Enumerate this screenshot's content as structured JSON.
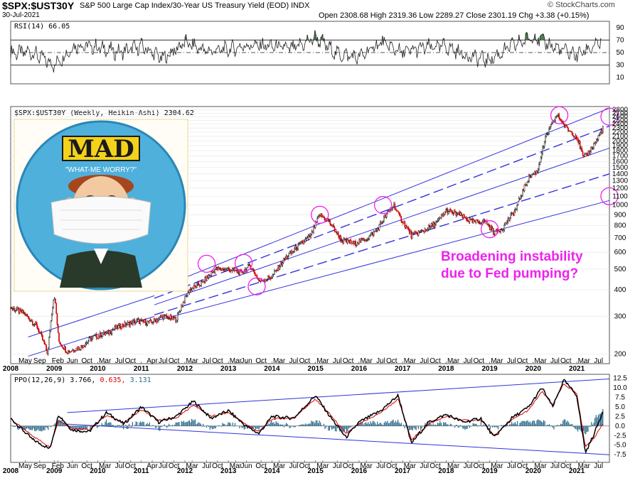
{
  "header": {
    "symbol": "$SPX:$UST30Y",
    "description": "S&P 500 Large Cap Index/30-Year US Treasury Yield (EOD)  INDX",
    "date": "30-Jul-2021",
    "ohlc": "Open 2308.68  High 2319.36  Low 2289.27  Close 2301.19  Chg +3.38 (+0.15%)",
    "brand": "© StockCharts.com"
  },
  "colors": {
    "price_up": "#000000",
    "price_down": "#cc0000",
    "trendline": "#3333dd",
    "circle": "#ee22ee",
    "annotation": "#ee22ee",
    "rsi_fill": "#4a7a4a",
    "ppo_line": "#000000",
    "signal_line": "#dd0000",
    "histogram": "#2a6a8a"
  },
  "chart_data": [
    {
      "type": "line",
      "title": "RSI(14) 66.05",
      "indicator": "RSI(14)",
      "current": "66.05",
      "y_ticks": [
        "90",
        "70",
        "50",
        "30",
        "10"
      ],
      "ylim": [
        0,
        100
      ],
      "overbought": 70,
      "oversold": 30,
      "grid": false,
      "x": [
        2008.5,
        2009.0,
        2009.5,
        2010.0,
        2010.5,
        2011.0,
        2011.5,
        2012.0,
        2012.5,
        2013.0,
        2013.5,
        2014.0,
        2014.5,
        2015.0,
        2015.5,
        2016.0,
        2016.5,
        2017.0,
        2017.5,
        2018.0,
        2018.5,
        2019.0,
        2019.5,
        2020.0,
        2020.5,
        2021.0,
        2021.55
      ],
      "values": [
        50,
        30,
        62,
        58,
        50,
        60,
        40,
        66,
        52,
        55,
        62,
        60,
        56,
        74,
        48,
        42,
        66,
        50,
        58,
        60,
        44,
        38,
        60,
        76,
        58,
        46,
        66
      ]
    },
    {
      "type": "line",
      "title": "$SPX:$UST30Y (Weekly, Heikin-Ashi) 2304.62",
      "style": "Heikin-Ashi",
      "current": "2304.62",
      "scale": "log",
      "y_ticks": [
        "2800",
        "2700",
        "2600",
        "2500",
        "2400",
        "2300",
        "2200",
        "2100",
        "2000",
        "1900",
        "1800",
        "1700",
        "1600",
        "1500",
        "1400",
        "1300",
        "1200",
        "1100",
        "1000",
        "900",
        "800",
        "700",
        "600",
        "500",
        "400",
        "300",
        "200"
      ],
      "ylim": [
        180,
        2900
      ],
      "x_tick_labels": [
        "2008",
        "May",
        "Sep",
        "2009",
        "Feb",
        "Jun",
        "Oct",
        "2010",
        "Mar",
        "Jul",
        "Oct",
        "2011",
        "Apr",
        "Jul",
        "Oct",
        "2012",
        "Mar",
        "Jul",
        "Oct",
        "2013",
        "Mar",
        "Jun",
        "Oct",
        "2014",
        "Mar",
        "Jul",
        "Oct",
        "2015",
        "Mar",
        "Jul",
        "Oct",
        "2016",
        "Mar",
        "Jul",
        "Oct",
        "2017",
        "Mar",
        "Jul",
        "Oct",
        "2018",
        "Mar",
        "Jul",
        "Oct",
        "2019",
        "Mar",
        "Jul",
        "Oct",
        "2020",
        "Mar",
        "Jul",
        "Oct",
        "2021",
        "Mar",
        "Jul"
      ],
      "xlim": [
        2008.0,
        2021.75
      ],
      "x": [
        2008.0,
        2008.3,
        2008.6,
        2008.85,
        2009.0,
        2009.1,
        2009.3,
        2009.6,
        2009.9,
        2010.2,
        2010.5,
        2010.9,
        2011.2,
        2011.5,
        2011.8,
        2012.1,
        2012.4,
        2012.7,
        2013.0,
        2013.3,
        2013.5,
        2013.7,
        2014.0,
        2014.3,
        2014.6,
        2014.9,
        2015.1,
        2015.3,
        2015.6,
        2015.9,
        2016.2,
        2016.4,
        2016.6,
        2016.8,
        2016.9,
        2017.2,
        2017.5,
        2017.8,
        2018.0,
        2018.3,
        2018.6,
        2018.9,
        2019.1,
        2019.3,
        2019.6,
        2019.9,
        2020.1,
        2020.3,
        2020.55,
        2020.75,
        2021.0,
        2021.15,
        2021.3,
        2021.45,
        2021.6
      ],
      "values": [
        330,
        310,
        270,
        200,
        380,
        230,
        205,
        215,
        240,
        250,
        270,
        285,
        280,
        300,
        290,
        400,
        430,
        500,
        500,
        480,
        520,
        440,
        460,
        560,
        640,
        720,
        900,
        840,
        680,
        660,
        700,
        760,
        880,
        1000,
        900,
        720,
        760,
        830,
        940,
        900,
        830,
        840,
        740,
        780,
        950,
        1350,
        1450,
        2100,
        2650,
        2300,
        2100,
        1650,
        1800,
        2000,
        2300
      ],
      "annotation": "Broadening instability due to Fed pumping?",
      "inset_image": "MAD magazine badge, \"MAD\", \"WHAT-ME WORRY?\", boy wearing face mask"
    },
    {
      "type": "line",
      "title": "PPO(12,26,9) 3.766, 0.635, 3.131",
      "indicator": "PPO(12,26,9)",
      "ppo_value": "3.766",
      "signal_value": "0.635",
      "histogram_value": "3.131",
      "y_ticks": [
        "12.5",
        "10.0",
        "7.5",
        "5.0",
        "2.5",
        "0.0",
        "-2.5",
        "-5.0",
        "-7.5"
      ],
      "ylim": [
        -9.5,
        13.5
      ],
      "x_tick_labels": [
        "2008",
        "May",
        "Sep",
        "2009",
        "Feb",
        "Jun",
        "Oct",
        "2010",
        "Mar",
        "Jul",
        "Oct",
        "2011",
        "Apr",
        "Jul",
        "Oct",
        "2012",
        "Mar",
        "Jul",
        "Oct",
        "2013",
        "Mar",
        "Jun",
        "Oct",
        "2014",
        "Mar",
        "Jul",
        "Oct",
        "2015",
        "Mar",
        "Jul",
        "Oct",
        "2016",
        "Mar",
        "Jul",
        "Oct",
        "2017",
        "Mar",
        "Jul",
        "Oct",
        "2018",
        "Mar",
        "Jul",
        "Oct",
        "2019",
        "Mar",
        "Jul",
        "Oct",
        "2020",
        "Mar",
        "Jul",
        "Oct",
        "2021",
        "Mar",
        "Jul"
      ],
      "x": [
        2008.0,
        2008.5,
        2008.9,
        2009.1,
        2009.4,
        2009.8,
        2010.2,
        2010.6,
        2011.0,
        2011.4,
        2011.8,
        2012.2,
        2012.6,
        2013.0,
        2013.4,
        2013.7,
        2014.0,
        2014.5,
        2015.0,
        2015.3,
        2015.7,
        2016.0,
        2016.5,
        2016.9,
        2017.2,
        2017.6,
        2018.0,
        2018.4,
        2018.8,
        2019.1,
        2019.5,
        2019.9,
        2020.2,
        2020.45,
        2020.7,
        2021.0,
        2021.2,
        2021.4,
        2021.6
      ],
      "series": [
        {
          "values": [
            2.0,
            -3.5,
            -6.0,
            3.0,
            -1.0,
            -1.5,
            3.5,
            0.5,
            5.0,
            1.0,
            2.5,
            6.5,
            2.0,
            4.0,
            0.0,
            -2.0,
            2.5,
            2.0,
            8.0,
            3.0,
            -3.0,
            1.0,
            4.0,
            8.0,
            -4.5,
            1.0,
            3.0,
            1.0,
            2.0,
            -3.0,
            2.0,
            5.0,
            10.0,
            5.0,
            12.0,
            8.0,
            -7.0,
            -2.0,
            3.8
          ]
        },
        {
          "values": [
            1.8,
            -2.5,
            -5.5,
            1.5,
            -0.5,
            -1.0,
            2.8,
            0.8,
            4.2,
            1.5,
            2.0,
            5.5,
            2.5,
            3.5,
            0.5,
            -1.5,
            1.8,
            2.2,
            7.0,
            3.5,
            -2.0,
            0.5,
            3.5,
            7.0,
            -3.5,
            0.5,
            2.5,
            1.5,
            1.5,
            -2.5,
            1.5,
            4.2,
            9.0,
            5.5,
            11.0,
            8.5,
            -5.5,
            -3.0,
            0.6
          ]
        }
      ]
    }
  ]
}
